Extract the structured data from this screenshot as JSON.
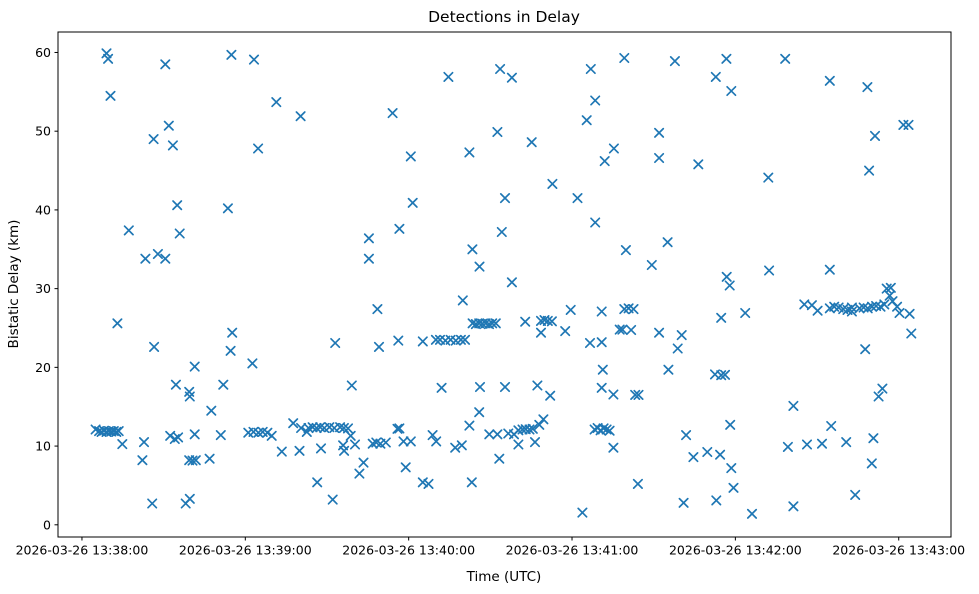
{
  "figure": {
    "background": "#ffffff",
    "spine_color": "#000000",
    "text_color": "#000000"
  },
  "chart_data": {
    "type": "scatter",
    "title": "Detections in Delay",
    "xlabel": "Time (UTC)",
    "ylabel": "Bistatic Delay (km)",
    "marker": "x",
    "marker_color": "#1f77b4",
    "grid": false,
    "legend_position": "none",
    "x_unit": "seconds after 2026-03-26 13:38:00 UTC",
    "xlim": [
      -8.8,
      319.2
    ],
    "ylim": [
      -1.55,
      62.6
    ],
    "x_ticks": [
      {
        "t": 0,
        "label": "2026-03-26 13:38:00"
      },
      {
        "t": 60,
        "label": "2026-03-26 13:39:00"
      },
      {
        "t": 120,
        "label": "2026-03-26 13:40:00"
      },
      {
        "t": 180,
        "label": "2026-03-26 13:41:00"
      },
      {
        "t": 240,
        "label": "2026-03-26 13:42:00"
      },
      {
        "t": 300,
        "label": "2026-03-26 13:43:00"
      }
    ],
    "y_ticks": [
      0,
      10,
      20,
      30,
      40,
      50,
      60
    ],
    "points": [
      [
        9.0,
        59.9
      ],
      [
        9.6,
        59.2
      ],
      [
        10.5,
        54.5
      ],
      [
        30.6,
        58.5
      ],
      [
        54.9,
        59.7
      ],
      [
        63.2,
        59.1
      ],
      [
        71.4,
        53.7
      ],
      [
        80.3,
        51.9
      ],
      [
        26.3,
        49.0
      ],
      [
        31.9,
        50.7
      ],
      [
        33.4,
        48.2
      ],
      [
        64.7,
        47.8
      ],
      [
        35.0,
        40.6
      ],
      [
        53.6,
        40.2
      ],
      [
        17.2,
        37.4
      ],
      [
        35.9,
        37.0
      ],
      [
        23.3,
        33.8
      ],
      [
        27.9,
        34.4
      ],
      [
        30.6,
        33.8
      ],
      [
        105.4,
        36.4
      ],
      [
        105.4,
        33.8
      ],
      [
        114.1,
        52.3
      ],
      [
        116.6,
        37.6
      ],
      [
        120.8,
        46.8
      ],
      [
        121.5,
        40.9
      ],
      [
        134.6,
        56.9
      ],
      [
        142.3,
        47.3
      ],
      [
        143.4,
        35.0
      ],
      [
        146.0,
        32.8
      ],
      [
        153.6,
        57.9
      ],
      [
        157.9,
        56.8
      ],
      [
        152.6,
        49.9
      ],
      [
        155.4,
        41.5
      ],
      [
        154.2,
        37.2
      ],
      [
        157.9,
        30.8
      ],
      [
        165.2,
        48.6
      ],
      [
        172.8,
        43.3
      ],
      [
        182.0,
        41.5
      ],
      [
        185.4,
        51.4
      ],
      [
        186.9,
        57.9
      ],
      [
        188.5,
        53.9
      ],
      [
        188.5,
        38.4
      ],
      [
        192.0,
        46.2
      ],
      [
        195.4,
        47.8
      ],
      [
        199.2,
        59.3
      ],
      [
        199.8,
        34.9
      ],
      [
        209.3,
        33.0
      ],
      [
        212.0,
        49.8
      ],
      [
        212.0,
        46.6
      ],
      [
        215.1,
        35.9
      ],
      [
        217.8,
        58.9
      ],
      [
        226.4,
        45.8
      ],
      [
        232.8,
        56.9
      ],
      [
        236.7,
        59.2
      ],
      [
        238.5,
        55.1
      ],
      [
        252.1,
        44.1
      ],
      [
        258.3,
        59.2
      ],
      [
        274.7,
        56.4
      ],
      [
        288.5,
        55.6
      ],
      [
        289.1,
        45.0
      ],
      [
        291.3,
        49.4
      ],
      [
        301.7,
        50.8
      ],
      [
        303.6,
        50.8
      ],
      [
        236.8,
        31.5
      ],
      [
        237.9,
        30.4
      ],
      [
        252.4,
        32.3
      ],
      [
        274.7,
        32.4
      ],
      [
        297.1,
        30.1
      ],
      [
        13.0,
        25.6
      ],
      [
        26.5,
        22.6
      ],
      [
        41.4,
        20.1
      ],
      [
        55.2,
        24.4
      ],
      [
        54.6,
        22.1
      ],
      [
        62.6,
        20.5
      ],
      [
        34.5,
        17.8
      ],
      [
        39.4,
        16.9
      ],
      [
        39.6,
        16.3
      ],
      [
        47.5,
        14.5
      ],
      [
        51.9,
        17.8
      ],
      [
        93.0,
        23.1
      ],
      [
        108.5,
        27.4
      ],
      [
        109.1,
        22.6
      ],
      [
        116.2,
        23.4
      ],
      [
        125.2,
        23.3
      ],
      [
        130.0,
        23.5
      ],
      [
        131.5,
        23.5
      ],
      [
        133.5,
        23.4
      ],
      [
        135.4,
        23.5
      ],
      [
        137.3,
        23.4
      ],
      [
        139.2,
        23.5
      ],
      [
        140.7,
        23.5
      ],
      [
        139.9,
        28.5
      ],
      [
        143.5,
        25.6
      ],
      [
        144.7,
        25.5
      ],
      [
        145.9,
        25.6
      ],
      [
        147.1,
        25.55
      ],
      [
        148.3,
        25.6
      ],
      [
        149.5,
        25.5
      ],
      [
        150.7,
        25.6
      ],
      [
        152.0,
        25.6
      ],
      [
        162.8,
        25.8
      ],
      [
        168.6,
        25.9
      ],
      [
        169.9,
        26.0
      ],
      [
        171.1,
        25.9
      ],
      [
        172.6,
        25.85
      ],
      [
        168.6,
        24.4
      ],
      [
        177.5,
        24.6
      ],
      [
        179.5,
        27.3
      ],
      [
        190.9,
        27.1
      ],
      [
        186.6,
        23.1
      ],
      [
        190.9,
        23.2
      ],
      [
        199.2,
        27.4
      ],
      [
        200.8,
        27.5
      ],
      [
        202.6,
        27.4
      ],
      [
        197.5,
        24.8
      ],
      [
        198.5,
        24.8
      ],
      [
        201.7,
        24.75
      ],
      [
        212.0,
        24.4
      ],
      [
        220.3,
        24.1
      ],
      [
        218.8,
        22.4
      ],
      [
        234.8,
        26.3
      ],
      [
        191.3,
        19.7
      ],
      [
        215.4,
        19.7
      ],
      [
        243.6,
        26.9
      ],
      [
        265.3,
        28.0
      ],
      [
        268.1,
        27.9
      ],
      [
        270.2,
        27.2
      ],
      [
        274.7,
        27.5
      ],
      [
        276.3,
        27.7
      ],
      [
        277.9,
        27.6
      ],
      [
        279.6,
        27.4
      ],
      [
        281.2,
        27.3
      ],
      [
        282.8,
        27.6
      ],
      [
        282.8,
        27.1
      ],
      [
        285.6,
        27.5
      ],
      [
        287.1,
        27.6
      ],
      [
        288.6,
        27.5
      ],
      [
        290.2,
        27.7
      ],
      [
        291.7,
        27.8
      ],
      [
        293.3,
        27.7
      ],
      [
        294.7,
        28.0
      ],
      [
        296.7,
        29.1
      ],
      [
        297.7,
        28.4
      ],
      [
        295.6,
        30.0
      ],
      [
        299.4,
        27.7
      ],
      [
        300.3,
        26.9
      ],
      [
        304.0,
        26.8
      ],
      [
        304.6,
        24.3
      ],
      [
        287.7,
        22.3
      ],
      [
        5.0,
        12.1
      ],
      [
        6.3,
        11.9
      ],
      [
        7.2,
        11.8
      ],
      [
        8.1,
        11.95
      ],
      [
        9.0,
        11.8
      ],
      [
        9.9,
        11.9
      ],
      [
        10.8,
        11.85
      ],
      [
        11.7,
        11.9
      ],
      [
        12.6,
        11.8
      ],
      [
        13.5,
        11.9
      ],
      [
        14.8,
        10.25
      ],
      [
        22.8,
        10.5
      ],
      [
        22.2,
        8.2
      ],
      [
        32.4,
        11.3
      ],
      [
        34.1,
        10.9
      ],
      [
        35.3,
        11.1
      ],
      [
        41.4,
        11.5
      ],
      [
        51.0,
        11.4
      ],
      [
        39.4,
        8.2
      ],
      [
        40.6,
        8.15
      ],
      [
        41.8,
        8.2
      ],
      [
        46.9,
        8.4
      ],
      [
        25.8,
        2.7
      ],
      [
        38.1,
        2.7
      ],
      [
        39.6,
        3.3
      ],
      [
        61.1,
        11.7
      ],
      [
        63.0,
        11.8
      ],
      [
        64.8,
        11.7
      ],
      [
        66.4,
        11.8
      ],
      [
        68.1,
        11.7
      ],
      [
        69.7,
        11.3
      ],
      [
        73.4,
        9.3
      ],
      [
        79.9,
        9.4
      ],
      [
        77.6,
        12.9
      ],
      [
        80.5,
        12.3
      ],
      [
        82.6,
        11.8
      ],
      [
        83.2,
        12.3
      ],
      [
        84.7,
        12.4
      ],
      [
        86.2,
        12.3
      ],
      [
        87.5,
        12.4
      ],
      [
        89.0,
        12.3
      ],
      [
        90.9,
        12.4
      ],
      [
        92.7,
        12.3
      ],
      [
        94.8,
        12.4
      ],
      [
        96.2,
        12.3
      ],
      [
        97.7,
        12.25
      ],
      [
        87.8,
        9.7
      ],
      [
        95.9,
        10.1
      ],
      [
        96.3,
        9.4
      ],
      [
        98.7,
        11.3
      ],
      [
        100.3,
        10.2
      ],
      [
        99.1,
        17.7
      ],
      [
        103.4,
        7.9
      ],
      [
        101.9,
        6.5
      ],
      [
        106.8,
        10.3
      ],
      [
        108.1,
        10.45
      ],
      [
        109.6,
        10.3
      ],
      [
        111.6,
        10.45
      ],
      [
        115.9,
        12.2
      ],
      [
        116.6,
        12.25
      ],
      [
        118.1,
        10.6
      ],
      [
        120.8,
        10.6
      ],
      [
        118.9,
        7.3
      ],
      [
        86.4,
        5.4
      ],
      [
        92.1,
        3.2
      ],
      [
        125.2,
        5.4
      ],
      [
        127.3,
        5.2
      ],
      [
        128.8,
        11.4
      ],
      [
        130.1,
        10.6
      ],
      [
        132.1,
        17.4
      ],
      [
        137.1,
        9.8
      ],
      [
        139.5,
        10.1
      ],
      [
        142.3,
        12.6
      ],
      [
        143.2,
        5.4
      ],
      [
        145.9,
        14.3
      ],
      [
        146.2,
        17.5
      ],
      [
        149.6,
        11.5
      ],
      [
        152.6,
        11.5
      ],
      [
        155.4,
        17.5
      ],
      [
        156.6,
        11.6
      ],
      [
        158.7,
        11.5
      ],
      [
        160.3,
        12.0
      ],
      [
        161.8,
        12.1
      ],
      [
        163.0,
        12.15
      ],
      [
        164.4,
        12.1
      ],
      [
        165.6,
        12.2
      ],
      [
        160.3,
        10.2
      ],
      [
        166.4,
        10.5
      ],
      [
        168.0,
        12.7
      ],
      [
        169.5,
        13.4
      ],
      [
        153.3,
        8.4
      ],
      [
        167.3,
        17.7
      ],
      [
        172.0,
        16.4
      ],
      [
        183.8,
        1.55
      ],
      [
        188.3,
        12.1
      ],
      [
        189.4,
        12.3
      ],
      [
        190.5,
        12.0
      ],
      [
        191.6,
        12.25
      ],
      [
        192.7,
        12.1
      ],
      [
        193.8,
        11.95
      ],
      [
        190.9,
        17.4
      ],
      [
        195.2,
        16.55
      ],
      [
        203.2,
        16.5
      ],
      [
        204.4,
        16.5
      ],
      [
        195.2,
        9.8
      ],
      [
        204.2,
        5.2
      ],
      [
        221.9,
        11.4
      ],
      [
        224.6,
        8.6
      ],
      [
        229.7,
        9.25
      ],
      [
        234.4,
        8.9
      ],
      [
        238.1,
        12.7
      ],
      [
        238.5,
        7.2
      ],
      [
        239.3,
        4.7
      ],
      [
        233.0,
        3.1
      ],
      [
        221.0,
        2.8
      ],
      [
        246.1,
        1.4
      ],
      [
        232.5,
        19.1
      ],
      [
        234.8,
        19.0
      ],
      [
        236.2,
        19.05
      ],
      [
        294.0,
        17.3
      ],
      [
        292.6,
        16.3
      ],
      [
        261.3,
        15.1
      ],
      [
        275.2,
        12.55
      ],
      [
        259.3,
        9.9
      ],
      [
        266.3,
        10.2
      ],
      [
        271.8,
        10.3
      ],
      [
        280.7,
        10.5
      ],
      [
        290.7,
        11.0
      ],
      [
        290.1,
        7.8
      ],
      [
        284.0,
        3.8
      ],
      [
        261.3,
        2.35
      ]
    ]
  }
}
